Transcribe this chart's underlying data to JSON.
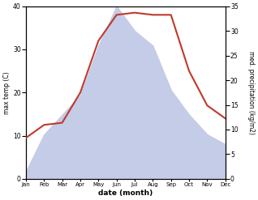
{
  "months": [
    "Jan",
    "Feb",
    "Mar",
    "Apr",
    "May",
    "Jun",
    "Jul",
    "Aug",
    "Sep",
    "Oct",
    "Nov",
    "Dec"
  ],
  "max_temp": [
    9.5,
    12.5,
    13,
    20,
    32,
    38,
    38.5,
    38,
    38,
    25,
    17,
    14
  ],
  "precipitation": [
    1.5,
    9,
    13,
    17,
    27,
    35,
    30,
    27,
    18,
    13,
    9,
    7
  ],
  "precip_fill_color": "#c5cce8",
  "temp_color": "#c0392b",
  "temp_ylim": [
    0,
    40
  ],
  "precip_ylim": [
    0,
    35
  ],
  "temp_yticks": [
    0,
    10,
    20,
    30,
    40
  ],
  "precip_yticks": [
    0,
    5,
    10,
    15,
    20,
    25,
    30,
    35
  ],
  "xlabel": "date (month)",
  "ylabel_left": "max temp (C)",
  "ylabel_right": "med. precipitation (kg/m2)",
  "bg_color": "#ffffff"
}
